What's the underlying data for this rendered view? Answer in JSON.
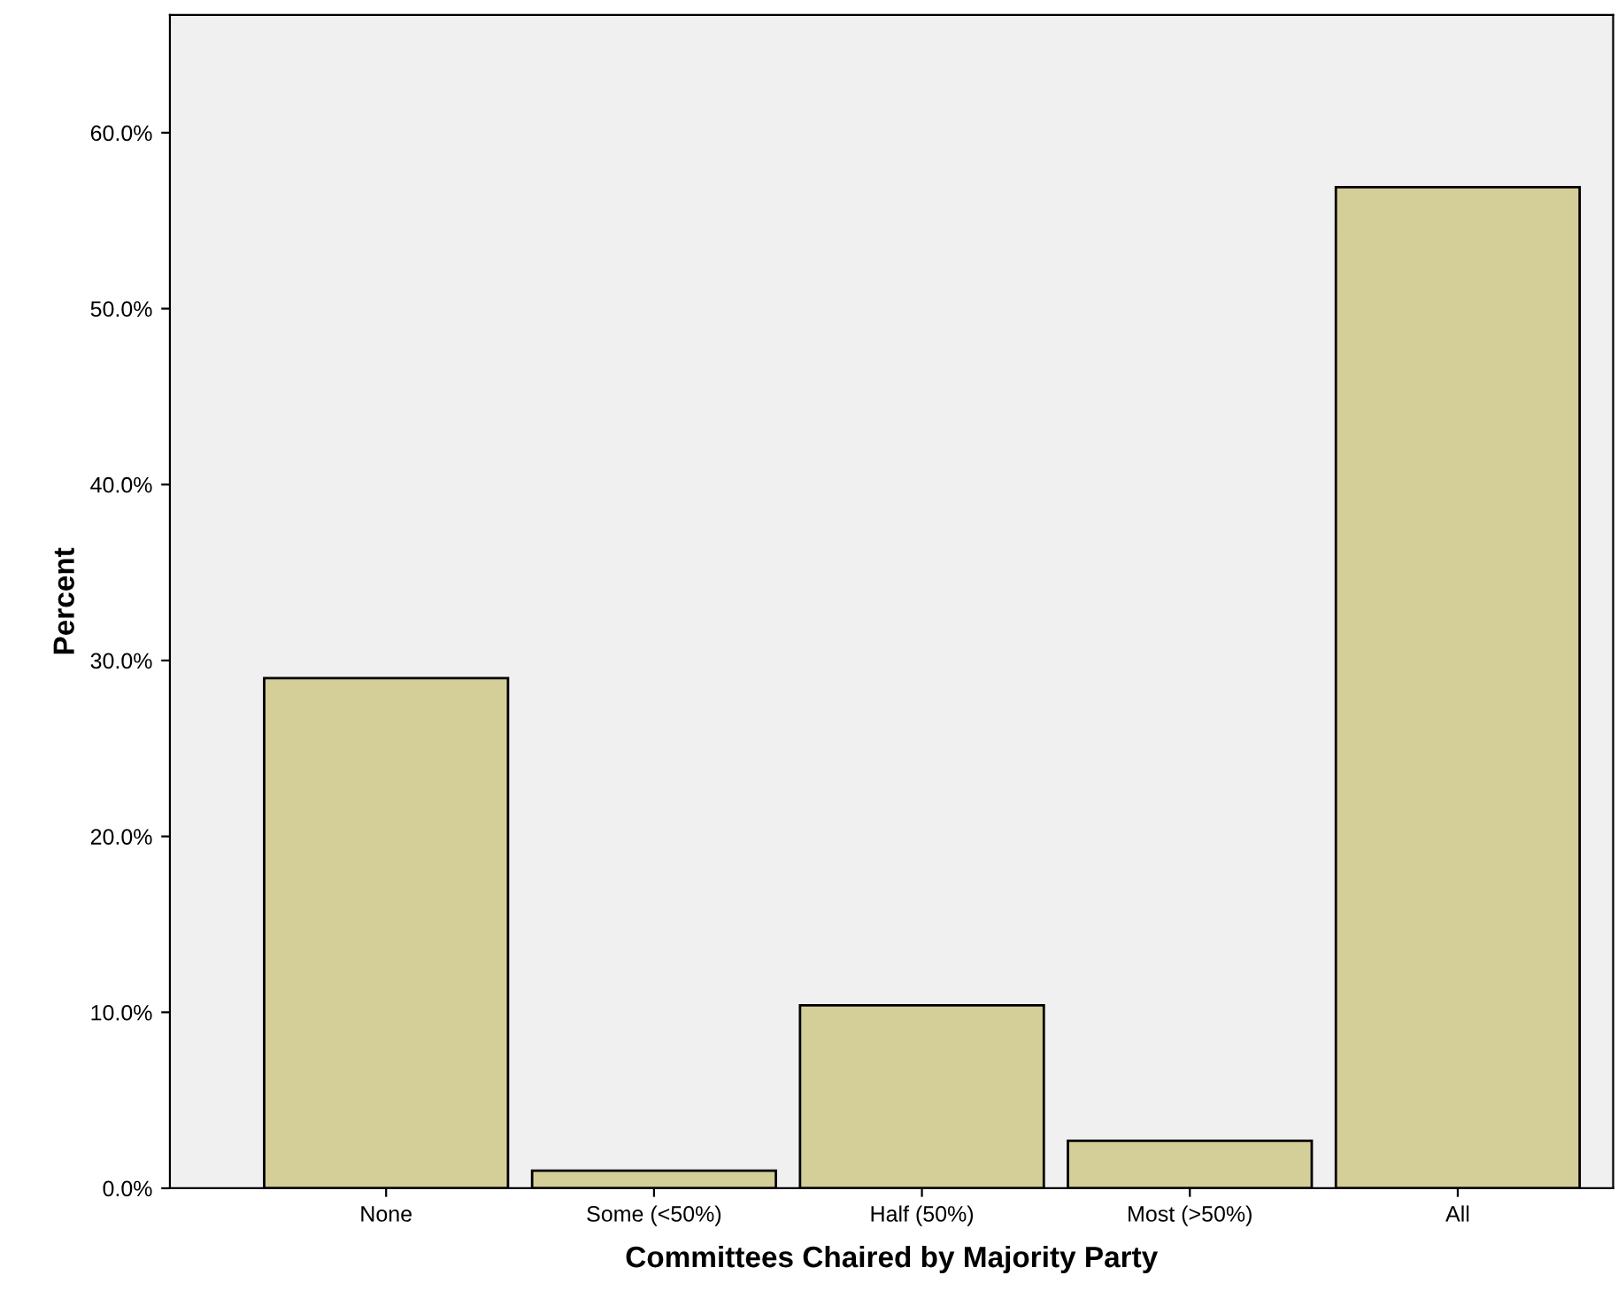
{
  "chart_data": {
    "type": "bar",
    "xlabel": "Committees Chaired by Majority Party",
    "ylabel": "Percent",
    "categories": [
      "None",
      "Some (<50%)",
      "Half (50%)",
      "Most (>50%)",
      "All"
    ],
    "values": [
      29.0,
      1.0,
      10.4,
      2.7,
      56.9
    ],
    "color": "#d4cf98",
    "ylim": [
      0,
      66.7
    ],
    "yticks": [
      {
        "value": 0,
        "label": "0.0%"
      },
      {
        "value": 10,
        "label": "10.0%"
      },
      {
        "value": 20,
        "label": "20.0%"
      },
      {
        "value": 30,
        "label": "30.0%"
      },
      {
        "value": 40,
        "label": "40.0%"
      },
      {
        "value": 50,
        "label": "50.0%"
      },
      {
        "value": 60,
        "label": "60.0%"
      }
    ],
    "grid": false,
    "legend": false
  }
}
